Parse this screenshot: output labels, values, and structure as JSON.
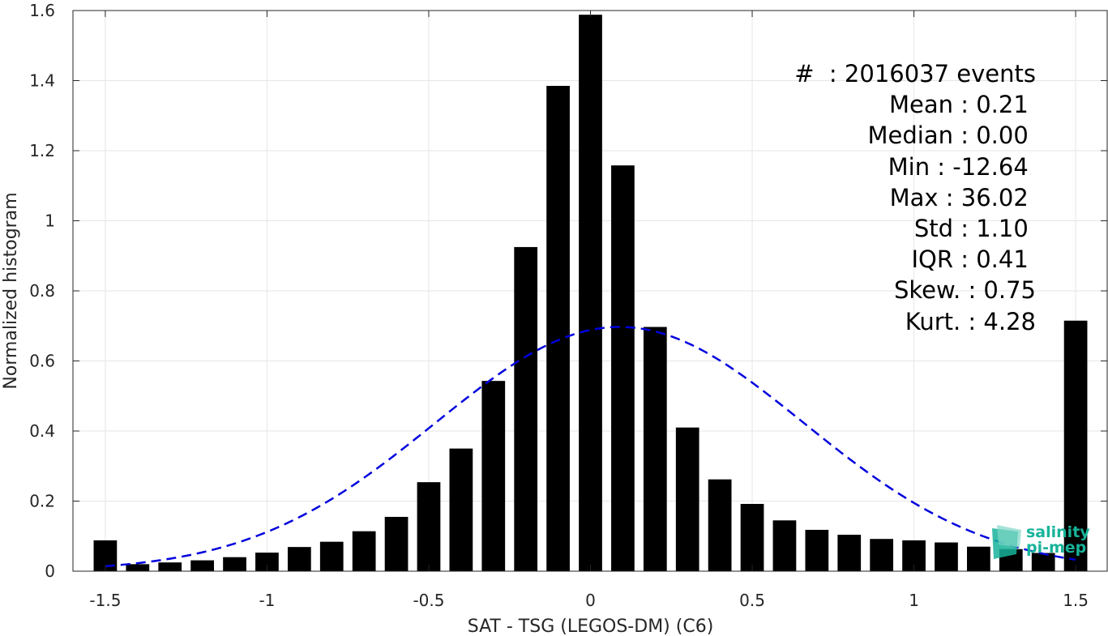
{
  "chart_data": {
    "type": "bar",
    "xlabel": "SAT - TSG (LEGOS-DM) (C6)",
    "ylabel": "Normalized histogram",
    "xlim": [
      -1.6,
      1.6
    ],
    "ylim": [
      0,
      1.6
    ],
    "xticks": [
      -1.5,
      -1,
      -0.5,
      0,
      0.5,
      1,
      1.5
    ],
    "xtick_labels": [
      "-1.5",
      "-1",
      "-0.5",
      "0",
      "0.5",
      "1",
      "1.5"
    ],
    "yticks": [
      0,
      0.2,
      0.4,
      0.6,
      0.8,
      1,
      1.2,
      1.4,
      1.6
    ],
    "ytick_labels": [
      "0",
      "0.2",
      "0.4",
      "0.6",
      "0.8",
      "1",
      "1.2",
      "1.4",
      "1.6"
    ],
    "grid": true,
    "bar_color": "#000000",
    "bars": {
      "x": [
        -1.5,
        -1.4,
        -1.3,
        -1.2,
        -1.1,
        -1.0,
        -0.9,
        -0.8,
        -0.7,
        -0.6,
        -0.5,
        -0.4,
        -0.3,
        -0.2,
        -0.1,
        0.0,
        0.1,
        0.2,
        0.3,
        0.4,
        0.5,
        0.6,
        0.7,
        0.8,
        0.9,
        1.0,
        1.1,
        1.2,
        1.3,
        1.4,
        1.5
      ],
      "values": [
        0.088,
        0.02,
        0.025,
        0.031,
        0.04,
        0.053,
        0.069,
        0.084,
        0.114,
        0.155,
        0.254,
        0.35,
        0.543,
        0.925,
        1.385,
        1.588,
        1.158,
        0.697,
        0.41,
        0.262,
        0.192,
        0.145,
        0.118,
        0.104,
        0.092,
        0.088,
        0.082,
        0.07,
        0.063,
        0.052,
        0.715
      ]
    },
    "fit_curve": {
      "kind": "normal",
      "color": "#0000dd",
      "style": "dashed",
      "mean": 0.09,
      "std": 0.57,
      "peak": 0.697,
      "x_range": [
        -1.5,
        1.5
      ]
    }
  },
  "stats": [
    "#  : 2016037 events",
    "Mean : 0.21 ",
    "Median : 0.00 ",
    "Min : -12.64 ",
    "Max : 36.02 ",
    "Std : 1.10 ",
    "IQR : 0.41 ",
    "Skew. : 0.75",
    "Kurt. : 4.28"
  ],
  "logo": {
    "line1": "salinity",
    "line2": "pi-mep",
    "color": "#18b39a"
  }
}
